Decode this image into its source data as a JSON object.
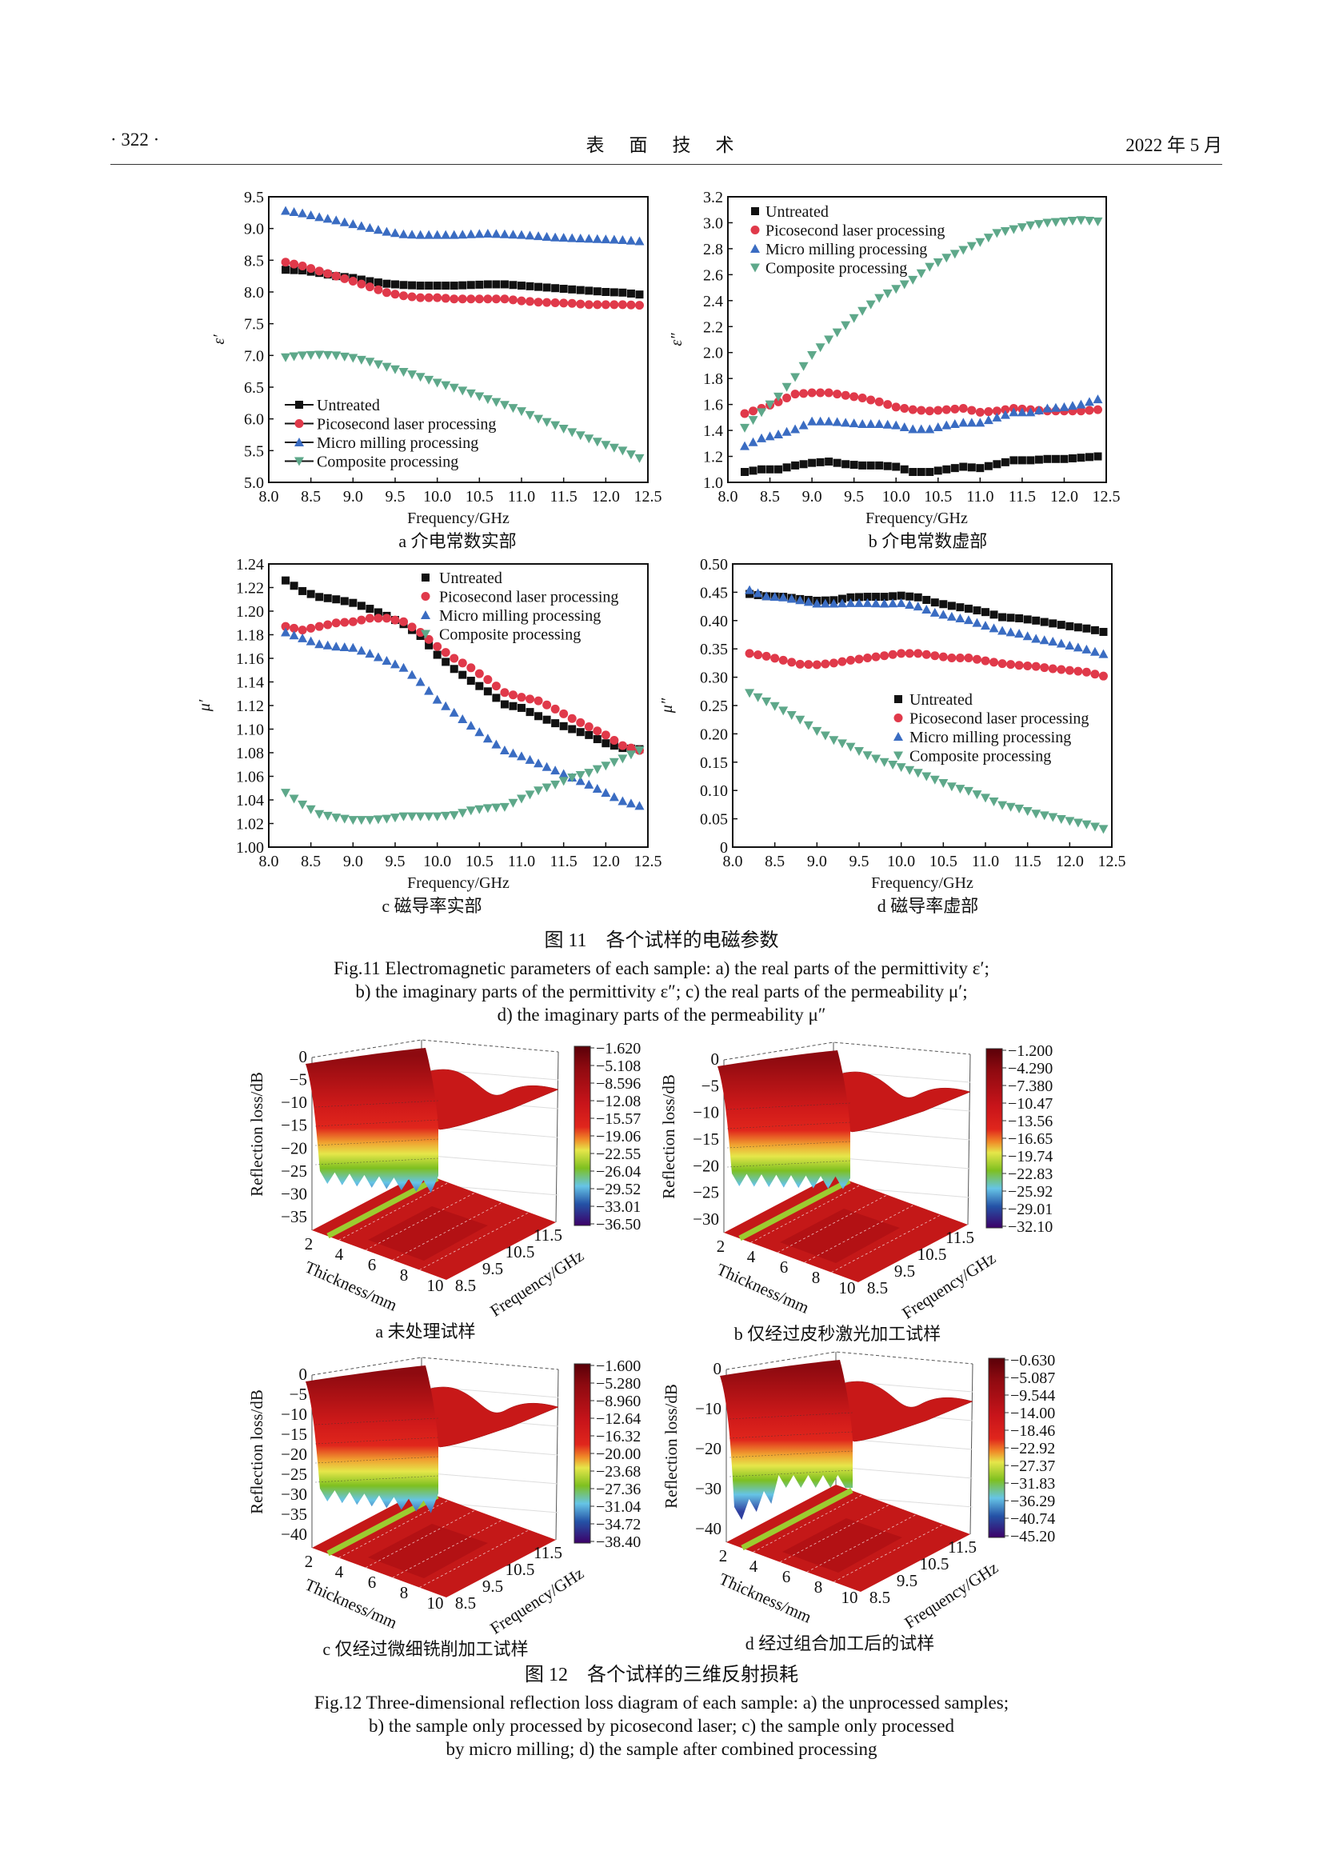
{
  "header": {
    "page": "· 322 ·",
    "journal": "表　面　技　术",
    "date": "2022 年 5 月"
  },
  "colors": {
    "untreated": "#111111",
    "picosecond": "#e0394a",
    "micro_milling": "#3a6cc2",
    "composite": "#5ea88a"
  },
  "fig11": {
    "title": "图 11　各个试样的电磁参数",
    "caption_en": [
      "Fig.11 Electromagnetic parameters of each sample: a) the real parts of the permittivity ε′;",
      "b) the imaginary parts of the permittivity ε″; c) the real parts of the permeability μ′;",
      "d) the imaginary parts of the permeability μ″"
    ]
  },
  "fig12": {
    "title": "图 12　各个试样的三维反射损耗",
    "caption_en": [
      "Fig.12 Three-dimensional reflection loss diagram of each sample: a) the unprocessed samples;",
      "b) the sample only processed by picosecond laser; c) the sample only processed",
      "by micro milling; d) the sample after combined processing"
    ]
  },
  "chart_data": [
    {
      "type": "scatter",
      "subcaption": "a 介电常数实部",
      "xlabel": "Frequency/GHz",
      "ylabel": "ε′",
      "xlim": [
        8.0,
        12.5
      ],
      "ylim": [
        5.0,
        9.5
      ],
      "legend_position": "bottom-left",
      "legend_style": "line-marker",
      "xticks": [
        "8.0",
        "8.5",
        "9.0",
        "9.5",
        "10.0",
        "10.5",
        "11.0",
        "11.5",
        "12.0",
        "12.5"
      ],
      "yticks": [
        "5.0",
        "5.5",
        "6.0",
        "6.5",
        "7.0",
        "7.5",
        "8.0",
        "8.5",
        "9.0",
        "9.5"
      ],
      "x": [
        8.2,
        8.4,
        8.6,
        8.8,
        9.0,
        9.2,
        9.4,
        9.6,
        9.8,
        10.0,
        10.2,
        10.4,
        10.6,
        10.8,
        11.0,
        11.2,
        11.4,
        11.6,
        11.8,
        12.0,
        12.2,
        12.4
      ],
      "series": [
        {
          "name": "Untreated",
          "marker": "square",
          "values": [
            8.35,
            8.34,
            8.3,
            8.25,
            8.22,
            8.17,
            8.13,
            8.11,
            8.1,
            8.1,
            8.1,
            8.11,
            8.12,
            8.12,
            8.1,
            8.08,
            8.06,
            8.04,
            8.02,
            8.0,
            7.99,
            7.96
          ]
        },
        {
          "name": "Picosecond laser processing",
          "marker": "circle",
          "values": [
            8.47,
            8.41,
            8.33,
            8.25,
            8.17,
            8.08,
            7.99,
            7.94,
            7.91,
            7.91,
            7.89,
            7.89,
            7.89,
            7.89,
            7.86,
            7.84,
            7.83,
            7.82,
            7.8,
            7.8,
            7.8,
            7.79
          ]
        },
        {
          "name": "Micro milling processing",
          "marker": "triangle-up",
          "values": [
            9.28,
            9.24,
            9.18,
            9.13,
            9.07,
            9.01,
            8.95,
            8.91,
            8.9,
            8.9,
            8.9,
            8.91,
            8.92,
            8.91,
            8.9,
            8.88,
            8.86,
            8.85,
            8.84,
            8.83,
            8.82,
            8.8
          ]
        },
        {
          "name": "Composite processing",
          "marker": "triangle-down",
          "values": [
            6.97,
            7.0,
            7.01,
            7.0,
            6.96,
            6.9,
            6.82,
            6.74,
            6.66,
            6.57,
            6.49,
            6.4,
            6.31,
            6.22,
            6.12,
            6.0,
            5.9,
            5.79,
            5.69,
            5.59,
            5.5,
            5.38
          ]
        }
      ]
    },
    {
      "type": "scatter",
      "subcaption": "b 介电常数虚部",
      "xlabel": "Frequency/GHz",
      "ylabel": "ε″",
      "xlim": [
        8.0,
        12.5
      ],
      "ylim": [
        1.0,
        3.2
      ],
      "legend_position": "top-left",
      "legend_style": "marker",
      "xticks": [
        "8.0",
        "8.5",
        "9.0",
        "9.5",
        "10.0",
        "10.5",
        "11.0",
        "11.5",
        "12.0",
        "12.5"
      ],
      "yticks": [
        "1.0",
        "1.2",
        "1.4",
        "1.6",
        "1.8",
        "2.0",
        "2.2",
        "2.4",
        "2.6",
        "2.8",
        "3.0",
        "3.2"
      ],
      "x": [
        8.2,
        8.4,
        8.6,
        8.8,
        9.0,
        9.2,
        9.4,
        9.6,
        9.8,
        10.0,
        10.2,
        10.4,
        10.6,
        10.8,
        11.0,
        11.2,
        11.4,
        11.6,
        11.8,
        12.0,
        12.2,
        12.4
      ],
      "series": [
        {
          "name": "Untreated",
          "marker": "square",
          "values": [
            1.08,
            1.1,
            1.1,
            1.13,
            1.15,
            1.16,
            1.14,
            1.13,
            1.13,
            1.12,
            1.08,
            1.08,
            1.1,
            1.12,
            1.11,
            1.14,
            1.17,
            1.17,
            1.18,
            1.18,
            1.19,
            1.2
          ]
        },
        {
          "name": "Picosecond laser processing",
          "marker": "circle",
          "values": [
            1.53,
            1.57,
            1.62,
            1.68,
            1.69,
            1.69,
            1.67,
            1.65,
            1.62,
            1.58,
            1.56,
            1.55,
            1.56,
            1.57,
            1.54,
            1.55,
            1.57,
            1.56,
            1.55,
            1.55,
            1.55,
            1.56
          ]
        },
        {
          "name": "Micro milling processing",
          "marker": "triangle-up",
          "values": [
            1.28,
            1.34,
            1.37,
            1.41,
            1.47,
            1.47,
            1.46,
            1.45,
            1.45,
            1.44,
            1.41,
            1.41,
            1.44,
            1.46,
            1.46,
            1.5,
            1.54,
            1.54,
            1.57,
            1.58,
            1.6,
            1.64
          ]
        },
        {
          "name": "Composite processing",
          "marker": "triangle-down",
          "values": [
            1.42,
            1.54,
            1.66,
            1.81,
            1.98,
            2.1,
            2.21,
            2.32,
            2.42,
            2.49,
            2.56,
            2.66,
            2.73,
            2.79,
            2.85,
            2.92,
            2.95,
            2.98,
            3.0,
            3.01,
            3.02,
            3.01
          ]
        }
      ]
    },
    {
      "type": "scatter",
      "subcaption": "c 磁导率实部",
      "xlabel": "Frequency/GHz",
      "ylabel": "μ′",
      "xlim": [
        8.0,
        12.5
      ],
      "ylim": [
        1.0,
        1.24
      ],
      "legend_position": "top-right",
      "legend_style": "marker",
      "xticks": [
        "8.0",
        "8.5",
        "9.0",
        "9.5",
        "10.0",
        "10.5",
        "11.0",
        "11.5",
        "12.0",
        "12.5"
      ],
      "yticks": [
        "1.00",
        "1.02",
        "1.04",
        "1.06",
        "1.08",
        "1.10",
        "1.12",
        "1.14",
        "1.16",
        "1.18",
        "1.20",
        "1.22",
        "1.24"
      ],
      "x": [
        8.2,
        8.4,
        8.6,
        8.8,
        9.0,
        9.2,
        9.4,
        9.6,
        9.8,
        10.0,
        10.2,
        10.4,
        10.6,
        10.8,
        11.0,
        11.2,
        11.4,
        11.6,
        11.8,
        12.0,
        12.2,
        12.4
      ],
      "series": [
        {
          "name": "Untreated",
          "marker": "square",
          "values": [
            1.226,
            1.217,
            1.212,
            1.21,
            1.207,
            1.202,
            1.196,
            1.189,
            1.179,
            1.163,
            1.151,
            1.141,
            1.132,
            1.121,
            1.118,
            1.111,
            1.105,
            1.1,
            1.095,
            1.088,
            1.084,
            1.083
          ]
        },
        {
          "name": "Picosecond laser processing",
          "marker": "circle",
          "values": [
            1.187,
            1.184,
            1.187,
            1.19,
            1.191,
            1.194,
            1.194,
            1.191,
            1.182,
            1.17,
            1.16,
            1.152,
            1.142,
            1.131,
            1.127,
            1.124,
            1.117,
            1.109,
            1.102,
            1.095,
            1.086,
            1.082
          ]
        },
        {
          "name": "Micro milling processing",
          "marker": "triangle-up",
          "values": [
            1.182,
            1.177,
            1.172,
            1.17,
            1.169,
            1.164,
            1.158,
            1.152,
            1.14,
            1.125,
            1.114,
            1.103,
            1.092,
            1.082,
            1.077,
            1.071,
            1.065,
            1.059,
            1.053,
            1.046,
            1.039,
            1.035
          ]
        },
        {
          "name": "Composite processing",
          "marker": "triangle-down",
          "values": [
            1.046,
            1.036,
            1.028,
            1.025,
            1.023,
            1.023,
            1.024,
            1.026,
            1.026,
            1.026,
            1.027,
            1.031,
            1.033,
            1.034,
            1.041,
            1.048,
            1.053,
            1.059,
            1.063,
            1.069,
            1.075,
            1.082
          ]
        }
      ]
    },
    {
      "type": "scatter",
      "subcaption": "d 磁导率虚部",
      "xlabel": "Frequency/GHz",
      "ylabel": "μ″",
      "xlim": [
        8.0,
        12.5
      ],
      "ylim": [
        0,
        0.5
      ],
      "legend_position": "center-right",
      "legend_style": "marker",
      "xticks": [
        "8.0",
        "8.5",
        "9.0",
        "9.5",
        "10.0",
        "10.5",
        "11.0",
        "11.5",
        "12.0",
        "12.5"
      ],
      "yticks": [
        "0",
        "0.05",
        "0.10",
        "0.15",
        "0.20",
        "0.25",
        "0.30",
        "0.35",
        "0.40",
        "0.45",
        "0.50"
      ],
      "x": [
        8.2,
        8.4,
        8.6,
        8.8,
        9.0,
        9.2,
        9.4,
        9.6,
        9.8,
        10.0,
        10.2,
        10.4,
        10.6,
        10.8,
        11.0,
        11.2,
        11.4,
        11.6,
        11.8,
        12.0,
        12.2,
        12.4
      ],
      "series": [
        {
          "name": "Untreated",
          "marker": "square",
          "values": [
            0.447,
            0.443,
            0.442,
            0.438,
            0.435,
            0.436,
            0.441,
            0.442,
            0.442,
            0.444,
            0.441,
            0.432,
            0.426,
            0.421,
            0.415,
            0.406,
            0.404,
            0.4,
            0.395,
            0.39,
            0.386,
            0.38
          ]
        },
        {
          "name": "Picosecond laser processing",
          "marker": "circle",
          "values": [
            0.342,
            0.337,
            0.33,
            0.323,
            0.322,
            0.325,
            0.33,
            0.334,
            0.338,
            0.342,
            0.342,
            0.338,
            0.334,
            0.334,
            0.329,
            0.324,
            0.321,
            0.319,
            0.315,
            0.312,
            0.309,
            0.302
          ]
        },
        {
          "name": "Micro milling processing",
          "marker": "triangle-up",
          "values": [
            0.454,
            0.443,
            0.441,
            0.436,
            0.43,
            0.43,
            0.431,
            0.431,
            0.43,
            0.431,
            0.425,
            0.414,
            0.407,
            0.401,
            0.391,
            0.382,
            0.377,
            0.368,
            0.363,
            0.356,
            0.349,
            0.341
          ]
        },
        {
          "name": "Composite processing",
          "marker": "triangle-down",
          "values": [
            0.272,
            0.257,
            0.241,
            0.225,
            0.205,
            0.189,
            0.177,
            0.162,
            0.15,
            0.141,
            0.131,
            0.119,
            0.107,
            0.099,
            0.087,
            0.074,
            0.068,
            0.059,
            0.053,
            0.046,
            0.04,
            0.032
          ]
        }
      ]
    },
    {
      "type": "surface",
      "subcaption": "a 未处理试样",
      "zlabel": "Reflection loss/dB",
      "xlabel": "Thickness/mm",
      "ylabel": "Frequency/GHz",
      "zticks": [
        "0",
        "−5",
        "−10",
        "−15",
        "−20",
        "−25",
        "−30",
        "−35"
      ],
      "thickness_ticks": [
        "2",
        "4",
        "6",
        "8",
        "10"
      ],
      "frequency_ticks": [
        "8.5",
        "9.5",
        "10.5",
        "11.5"
      ],
      "colorbar_ticks": [
        "−1.620",
        "−5.108",
        "−8.596",
        "−12.08",
        "−15.57",
        "−19.06",
        "−22.55",
        "−26.04",
        "−29.52",
        "−33.01",
        "−36.50"
      ],
      "zmin": -36.5
    },
    {
      "type": "surface",
      "subcaption": "b 仅经过皮秒激光加工试样",
      "zlabel": "Reflection loss/dB",
      "xlabel": "Thickness/mm",
      "ylabel": "Frequency/GHz",
      "zticks": [
        "0",
        "−5",
        "−10",
        "−15",
        "−20",
        "−25",
        "−30"
      ],
      "thickness_ticks": [
        "2",
        "4",
        "6",
        "8",
        "10"
      ],
      "frequency_ticks": [
        "8.5",
        "9.5",
        "10.5",
        "11.5"
      ],
      "colorbar_ticks": [
        "−1.200",
        "−4.290",
        "−7.380",
        "−10.47",
        "−13.56",
        "−16.65",
        "−19.74",
        "−22.83",
        "−25.92",
        "−29.01",
        "−32.10"
      ],
      "zmin": -32.1
    },
    {
      "type": "surface",
      "subcaption": "c 仅经过微细铣削加工试样",
      "zlabel": "Reflection loss/dB",
      "xlabel": "Thickness/mm",
      "ylabel": "Frequency/GHz",
      "zticks": [
        "0",
        "−5",
        "−10",
        "−15",
        "−20",
        "−25",
        "−30",
        "−35",
        "−40"
      ],
      "thickness_ticks": [
        "2",
        "4",
        "6",
        "8",
        "10"
      ],
      "frequency_ticks": [
        "8.5",
        "9.5",
        "10.5",
        "11.5"
      ],
      "colorbar_ticks": [
        "−1.600",
        "−5.280",
        "−8.960",
        "−12.64",
        "−16.32",
        "−20.00",
        "−23.68",
        "−27.36",
        "−31.04",
        "−34.72",
        "−38.40"
      ],
      "zmin": -38.4
    },
    {
      "type": "surface",
      "subcaption": "d 经过组合加工后的试样",
      "zlabel": "Reflection loss/dB",
      "xlabel": "Thickness/mm",
      "ylabel": "Frequency/GHz",
      "zticks": [
        "0",
        "−10",
        "−20",
        "−30",
        "−40"
      ],
      "thickness_ticks": [
        "2",
        "4",
        "6",
        "8",
        "10"
      ],
      "frequency_ticks": [
        "8.5",
        "9.5",
        "10.5",
        "11.5"
      ],
      "colorbar_ticks": [
        "−0.630",
        "−5.087",
        "−9.544",
        "−14.00",
        "−18.46",
        "−22.92",
        "−27.37",
        "−31.83",
        "−36.29",
        "−40.74",
        "−45.20"
      ],
      "zmin": -45.2
    }
  ]
}
